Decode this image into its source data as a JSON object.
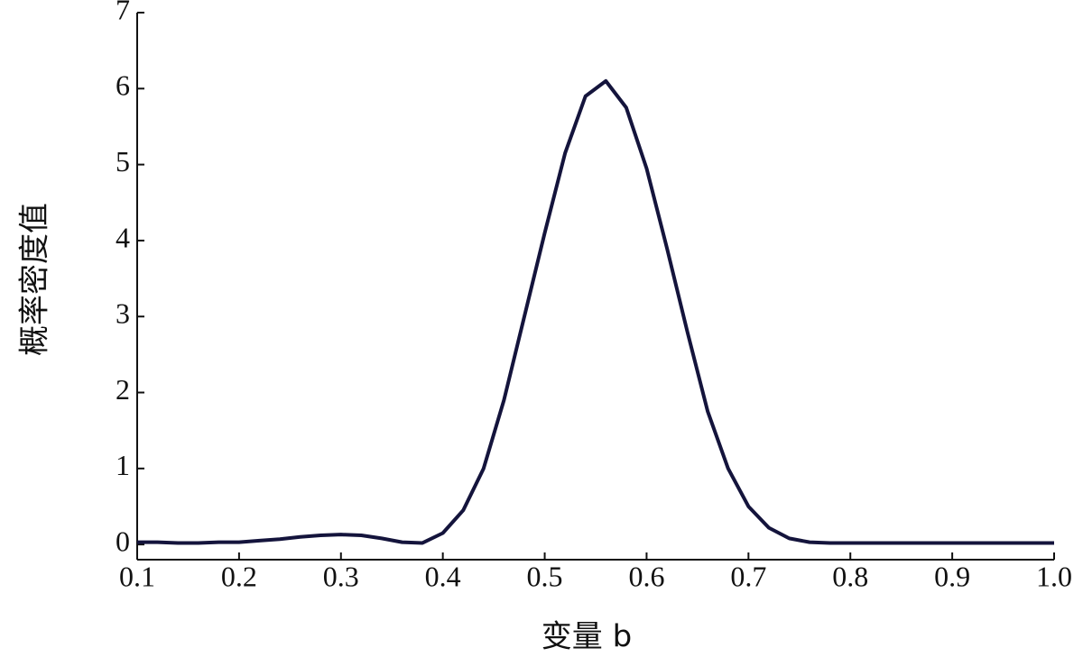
{
  "chart_data": {
    "type": "line",
    "x_label": "变量 b",
    "y_label": "概率密度值",
    "x": [
      0.1,
      0.12,
      0.14,
      0.16,
      0.18,
      0.2,
      0.22,
      0.24,
      0.26,
      0.28,
      0.3,
      0.32,
      0.34,
      0.36,
      0.38,
      0.4,
      0.42,
      0.44,
      0.46,
      0.48,
      0.5,
      0.52,
      0.54,
      0.56,
      0.58,
      0.6,
      0.62,
      0.64,
      0.66,
      0.68,
      0.7,
      0.72,
      0.74,
      0.76,
      0.78,
      0.8,
      0.85,
      0.9,
      0.95,
      1.0
    ],
    "series": [
      {
        "color": "#14143c",
        "values": [
          0.03,
          0.03,
          0.02,
          0.02,
          0.03,
          0.03,
          0.05,
          0.07,
          0.1,
          0.12,
          0.13,
          0.12,
          0.08,
          0.03,
          0.02,
          0.15,
          0.45,
          1.0,
          1.9,
          3.0,
          4.1,
          5.15,
          5.9,
          6.1,
          5.75,
          4.95,
          3.9,
          2.8,
          1.75,
          1.0,
          0.5,
          0.22,
          0.08,
          0.03,
          0.02,
          0.02,
          0.02,
          0.02,
          0.02,
          0.02
        ]
      }
    ],
    "xlim": [
      0.1,
      1.0
    ],
    "xticks": [
      0.1,
      0.2,
      0.3,
      0.4,
      0.5,
      0.6,
      0.7,
      0.8,
      0.9,
      {
        "value": 1,
        "label": "1.0"
      }
    ],
    "ylim": [
      -0.2,
      7
    ],
    "yticks": [
      0,
      1,
      2,
      3,
      4,
      5,
      6,
      7
    ],
    "grid": false
  }
}
